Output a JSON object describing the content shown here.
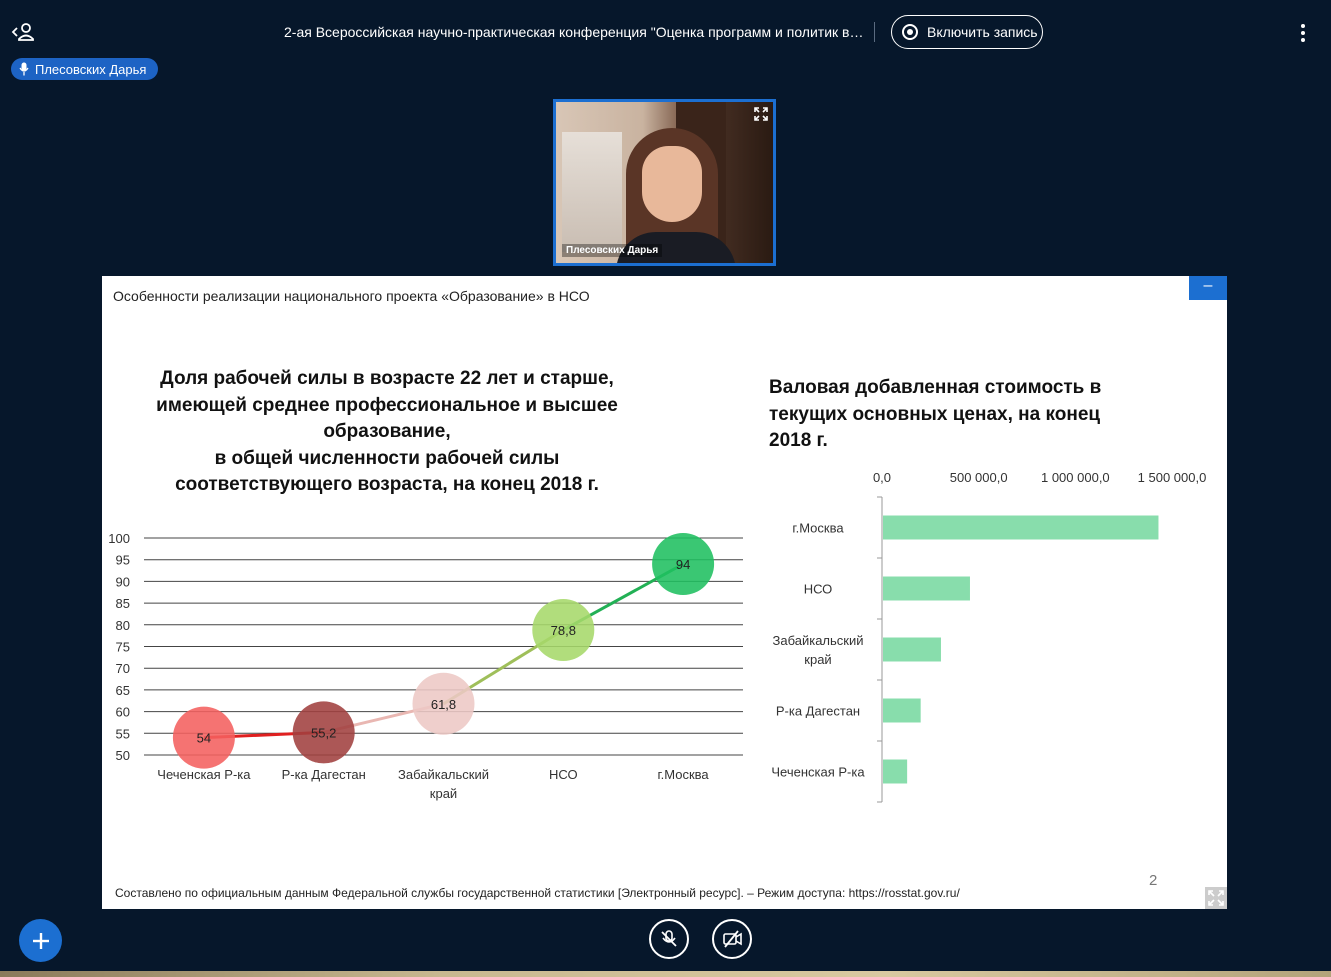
{
  "header": {
    "title": "2-ая Всероссийская научно-практическая конференция \"Оценка программ и политик в ...",
    "record_label": "Включить запись"
  },
  "speaker": {
    "name": "Плесовских Дарья"
  },
  "video": {
    "name": "Плесовских Дарья"
  },
  "slide": {
    "header": "Особенности реализации  национального проекта «Образование» в НСО",
    "minimize_label": "–",
    "footer": "Составлено по официальным данным  Федеральной службы государственной статистики [Электронный ресурс]. – Режим доступа: https://rosstat.gov.ru/",
    "page_number": "2"
  },
  "chart_data": [
    {
      "type": "line",
      "title": "Доля рабочей силы в возрасте 22 лет и старше, имеющей среднее профессиональное и высшее образование, в общей численности рабочей силы соответствующего возраста, на конец 2018 г.",
      "title_lines": [
        "Доля рабочей силы в возрасте 22 лет и старше,",
        "имеющей среднее профессиональное и высшее",
        "образование,",
        "в общей численности рабочей силы",
        "соответствующего возраста, на конец 2018 г."
      ],
      "categories": [
        "Чеченская Р-ка",
        "Р-ка Дагестан",
        "Забайкальский край",
        "НСО",
        "г.Москва"
      ],
      "category_lines": [
        [
          "Чеченская Р-ка"
        ],
        [
          "Р-ка Дагестан"
        ],
        [
          "Забайкальский",
          "край"
        ],
        [
          "НСО"
        ],
        [
          "г.Москва"
        ]
      ],
      "values": [
        54,
        55.2,
        61.8,
        78.8,
        94
      ],
      "data_labels": [
        "54",
        "55,2",
        "61,8",
        "78,8",
        "94"
      ],
      "point_colors": [
        "#f4605f",
        "#a0403f",
        "#edc8c5",
        "#a6d86a",
        "#1fbf60"
      ],
      "line_colors": [
        "#e02020",
        "#e9b7b2",
        "#9fbf5a",
        "#22b055"
      ],
      "ylim": [
        50,
        100
      ],
      "yticks": [
        100,
        95,
        90,
        85,
        80,
        75,
        70,
        65,
        60,
        55,
        50
      ],
      "grid": true
    },
    {
      "type": "bar",
      "orientation": "horizontal",
      "title": "Валовая добавленная стоимость в текущих основных ценах, на конец 2018 г.",
      "title_lines": [
        "Валовая добавленная стоимость в",
        "текущих основных ценах, на конец",
        "2018 г."
      ],
      "categories": [
        "г.Москва",
        "НСО",
        "Забайкальский край",
        "Р-ка Дагестан",
        "Чеченская Р-ка"
      ],
      "category_lines": [
        [
          "г.Москва"
        ],
        [
          "НСО"
        ],
        [
          "Забайкальский",
          "край"
        ],
        [
          "Р-ка Дагестан"
        ],
        [
          "Чеченская Р-ка"
        ]
      ],
      "values": [
        1430000,
        455000,
        305000,
        200000,
        130000
      ],
      "xlim": [
        0,
        1500000
      ],
      "xtick_values": [
        0,
        500000,
        1000000,
        1500000
      ],
      "xtick_labels": [
        "0,0",
        "500 000,0",
        "1 000 000,0",
        "1 500 000,0"
      ],
      "bar_color": "#88ddac"
    }
  ]
}
